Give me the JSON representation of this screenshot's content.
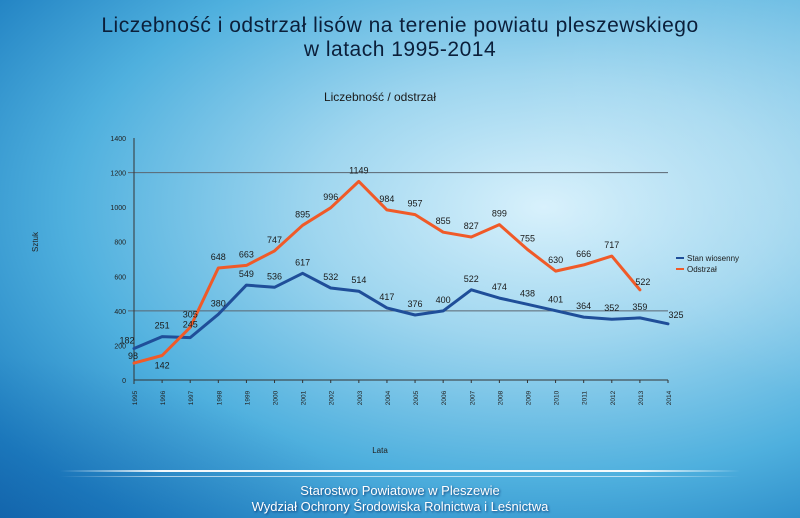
{
  "page": {
    "title_line1": "Liczebność i odstrzał lisów na terenie powiatu pleszewskiego",
    "title_line2": "w latach 1995-2014"
  },
  "footer": {
    "line1": "Starostwo Powiatowe w Pleszewie",
    "line2": "Wydział Ochrony Środowiska Rolnictwa i Leśnictwa"
  },
  "colors": {
    "stan": "#1f4e99",
    "odstrzal": "#f05a28",
    "grid": "#5a6570",
    "axis": "#333333"
  },
  "chart_data": {
    "type": "line",
    "title": "Liczebność / odstrzał",
    "xlabel": "Lata",
    "ylabel": "Sztuk",
    "ylim": [
      0,
      1400
    ],
    "yticks": [
      0,
      200,
      400,
      600,
      800,
      1000,
      1200,
      1400
    ],
    "grid": "horizontal at 400 and 1200",
    "legend": "right",
    "categories": [
      "1995",
      "1996",
      "1997",
      "1998",
      "1999",
      "2000",
      "2001",
      "2002",
      "2003",
      "2004",
      "2005",
      "2006",
      "2007",
      "2008",
      "2009",
      "2010",
      "2011",
      "2012",
      "2013",
      "2014"
    ],
    "series": [
      {
        "name": "Stan wiosenny",
        "key": "stan",
        "values": [
          182,
          251,
          245,
          380,
          549,
          536,
          617,
          532,
          514,
          417,
          376,
          400,
          522,
          474,
          438,
          401,
          364,
          352,
          359,
          325
        ],
        "labels": [
          "182",
          "251",
          "245",
          "380",
          "549",
          "536",
          "617",
          "532",
          "514",
          "417",
          "376",
          "400",
          "522",
          "474",
          "438",
          "401",
          "364",
          "352",
          "359",
          "325"
        ]
      },
      {
        "name": "Odstrzał",
        "key": "odstrzal",
        "values": [
          98,
          142,
          305,
          648,
          663,
          747,
          895,
          996,
          1149,
          984,
          957,
          855,
          827,
          899,
          755,
          630,
          666,
          717,
          522,
          null
        ],
        "labels": [
          "98",
          "142",
          "305",
          "648",
          "663",
          "747",
          "895",
          "996",
          "1149",
          "984",
          "957",
          "855",
          "827",
          "899",
          "755",
          "630",
          "666",
          "717",
          "522",
          ""
        ]
      }
    ]
  }
}
